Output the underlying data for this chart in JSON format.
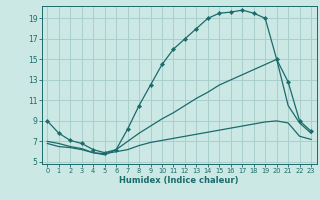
{
  "xlabel": "Humidex (Indice chaleur)",
  "bg_color": "#cce8e5",
  "grid_color": "#aacfcc",
  "line_color": "#1a6b6b",
  "xlim": [
    -0.5,
    23.5
  ],
  "ylim": [
    4.8,
    20.2
  ],
  "yticks": [
    5,
    7,
    9,
    11,
    13,
    15,
    17,
    19
  ],
  "xticks": [
    0,
    1,
    2,
    3,
    4,
    5,
    6,
    7,
    8,
    9,
    10,
    11,
    12,
    13,
    14,
    15,
    16,
    17,
    18,
    19,
    20,
    21,
    22,
    23
  ],
  "curve1_x": [
    0,
    1,
    2,
    3,
    4,
    5,
    6,
    7,
    8,
    9,
    10,
    11,
    12,
    13,
    14,
    15,
    16,
    17,
    18,
    19,
    20,
    21,
    22,
    23
  ],
  "curve1_y": [
    9.0,
    7.8,
    7.1,
    6.8,
    6.2,
    5.9,
    6.2,
    8.2,
    10.5,
    12.5,
    14.5,
    16.0,
    17.0,
    18.0,
    19.0,
    19.5,
    19.6,
    19.8,
    19.5,
    19.0,
    15.0,
    12.8,
    9.0,
    8.0
  ],
  "curve2_x": [
    0,
    1,
    2,
    3,
    4,
    5,
    6,
    7,
    8,
    9,
    10,
    11,
    12,
    13,
    14,
    15,
    16,
    17,
    18,
    19,
    20,
    21,
    22,
    23
  ],
  "curve2_y": [
    7.0,
    6.8,
    6.5,
    6.3,
    5.9,
    5.7,
    6.2,
    7.0,
    7.8,
    8.5,
    9.2,
    9.8,
    10.5,
    11.2,
    11.8,
    12.5,
    13.0,
    13.5,
    14.0,
    14.5,
    15.0,
    10.5,
    8.8,
    7.8
  ],
  "curve3_x": [
    0,
    1,
    2,
    3,
    4,
    5,
    6,
    7,
    8,
    9,
    10,
    11,
    12,
    13,
    14,
    15,
    16,
    17,
    18,
    19,
    20,
    21,
    22,
    23
  ],
  "curve3_y": [
    6.8,
    6.5,
    6.4,
    6.2,
    5.9,
    5.8,
    6.0,
    6.2,
    6.6,
    6.9,
    7.1,
    7.3,
    7.5,
    7.7,
    7.9,
    8.1,
    8.3,
    8.5,
    8.7,
    8.9,
    9.0,
    8.8,
    7.5,
    7.2
  ]
}
